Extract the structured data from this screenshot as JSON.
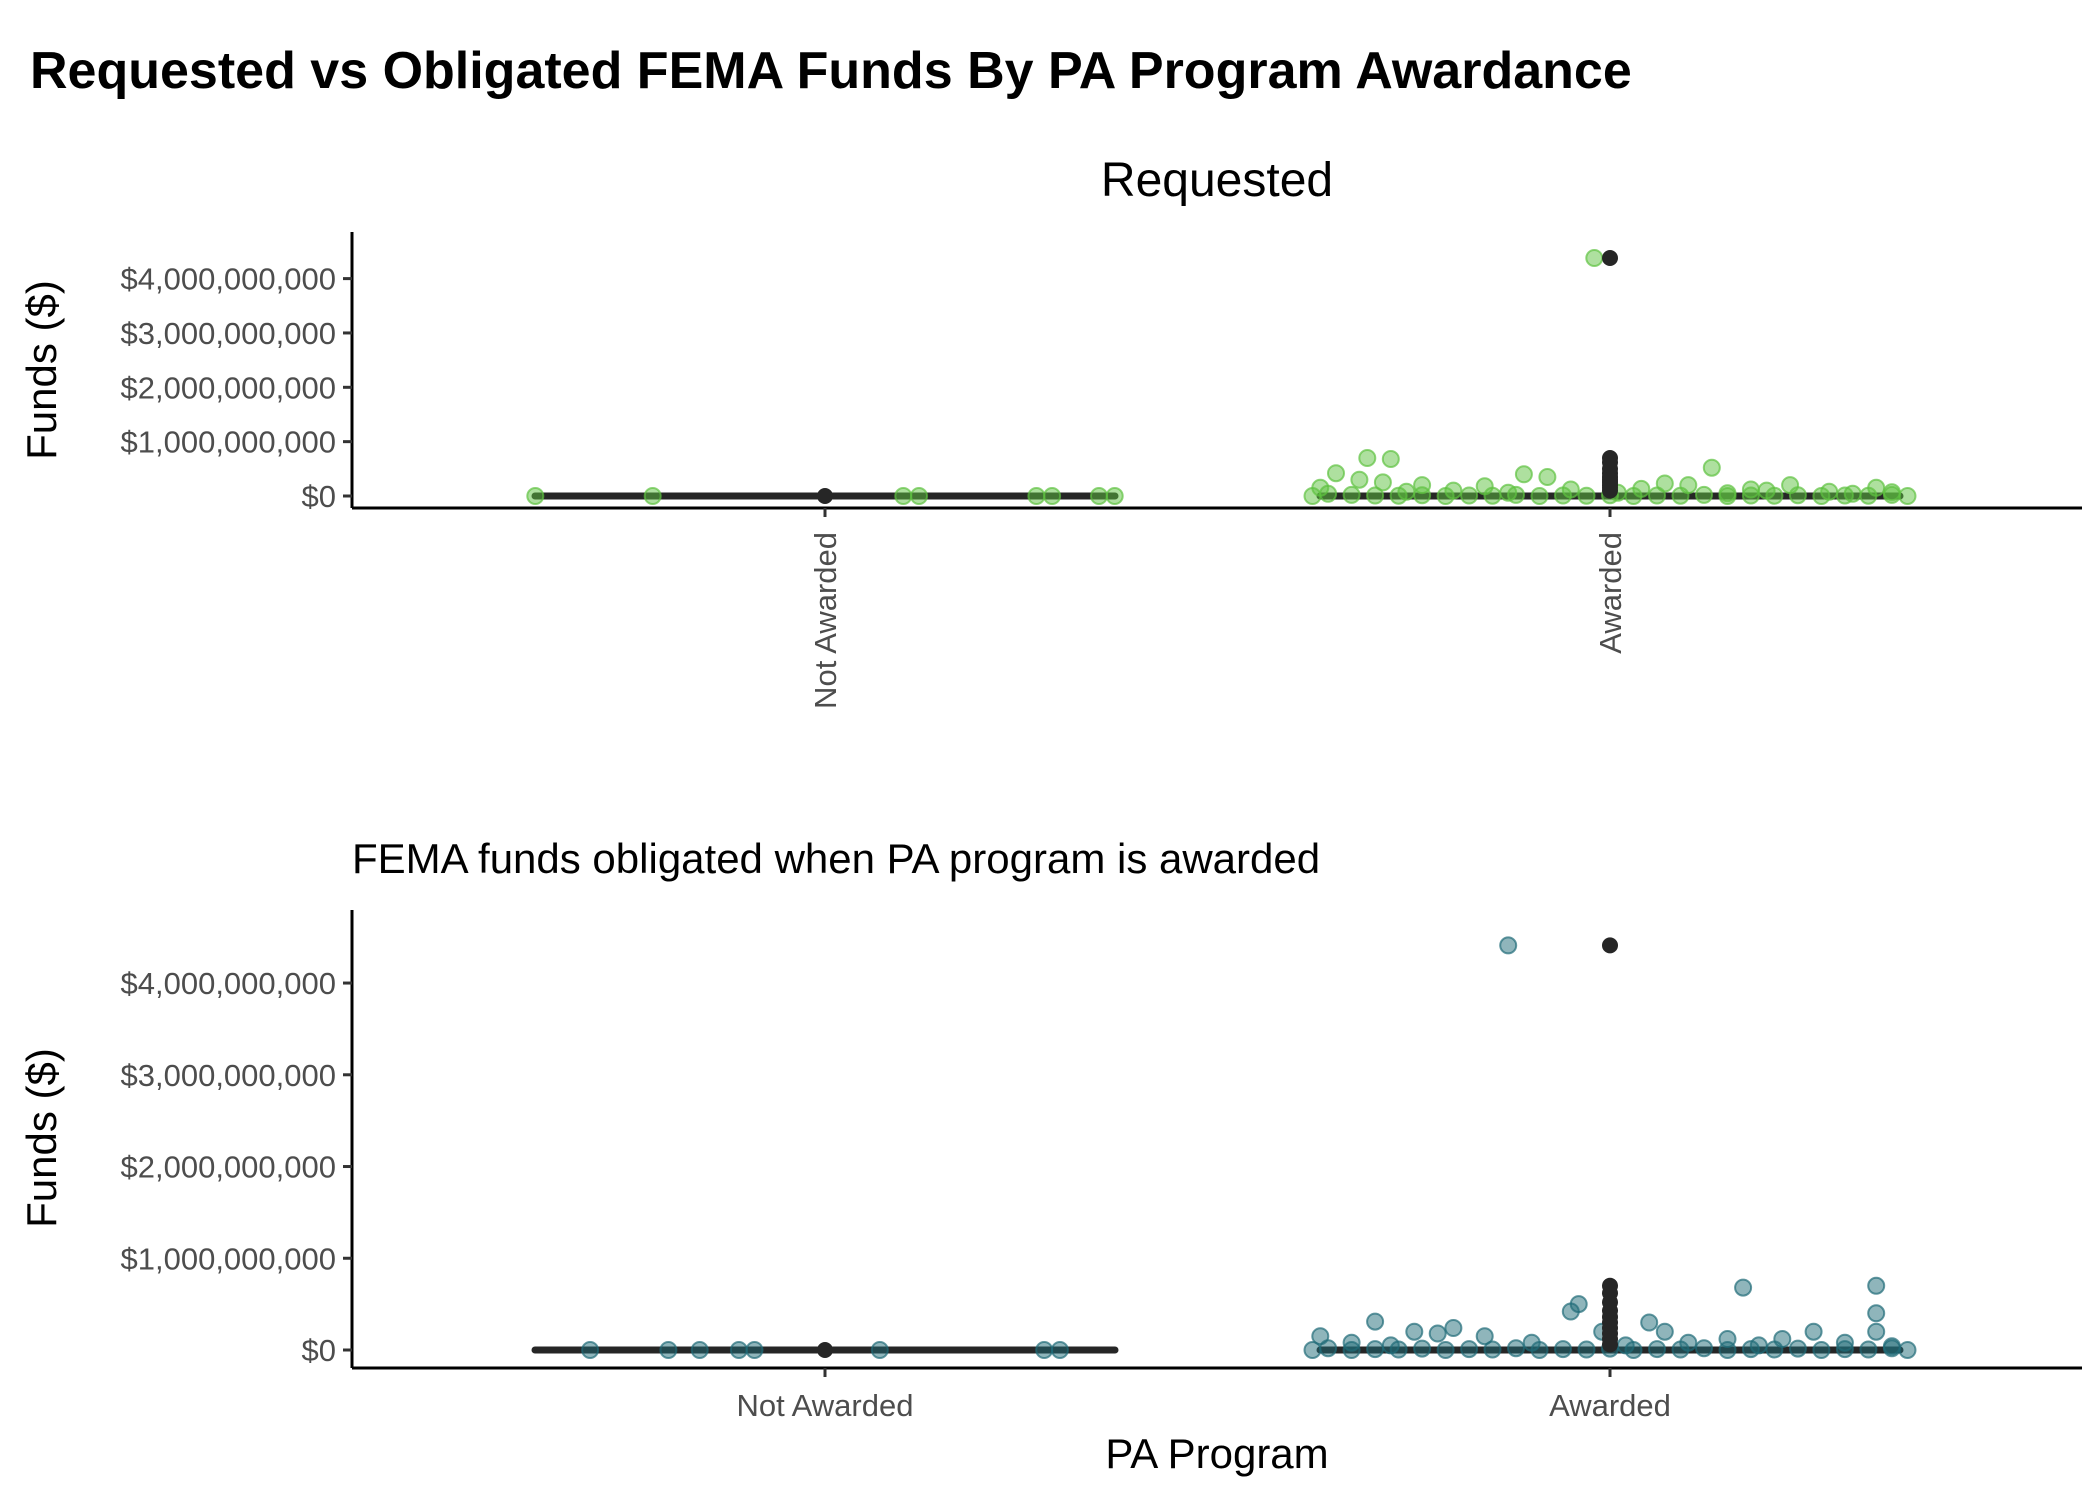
{
  "title": "Requested vs Obligated FEMA Funds By PA Program Awardance",
  "colors": {
    "requested_points": "#5ec240",
    "obligated_points": "#1f6b78",
    "box": "#262626"
  },
  "chart_data": [
    {
      "type": "box+jitter",
      "title": "Requested",
      "subtitle": "",
      "xlabel": "",
      "ylabel": "Funds ($)",
      "categories": [
        "Not Awarded",
        "Awarded"
      ],
      "x_tick_rotation": "vertical",
      "ylim": [
        -200000000,
        4600000000
      ],
      "yticks": [
        0,
        1000000000,
        2000000000,
        3000000000,
        4000000000
      ],
      "ytick_labels": [
        "$0",
        "$1,000,000,000",
        "$2,000,000,000",
        "$3,000,000,000",
        "$4,000,000,000"
      ],
      "point_color": "#5ec240",
      "boxes": [
        {
          "category": "Not Awarded",
          "median": 0,
          "q1": 0,
          "q3": 0
        },
        {
          "category": "Awarded",
          "median": 0,
          "q1": 0,
          "q3": 0
        }
      ],
      "outliers": [
        {
          "category": "Not Awarded",
          "values": [
            0
          ]
        },
        {
          "category": "Awarded",
          "values": [
            4380000000,
            700000000,
            620000000,
            500000000,
            420000000,
            350000000,
            300000000,
            250000000,
            200000000,
            150000000,
            100000000
          ]
        }
      ],
      "points": [
        {
          "category": "Not Awarded",
          "jitter": -0.37,
          "value": 0
        },
        {
          "category": "Not Awarded",
          "jitter": -0.22,
          "value": 0
        },
        {
          "category": "Not Awarded",
          "jitter": 0.1,
          "value": 0
        },
        {
          "category": "Not Awarded",
          "jitter": 0.12,
          "value": 0
        },
        {
          "category": "Not Awarded",
          "jitter": 0.27,
          "value": 0
        },
        {
          "category": "Not Awarded",
          "jitter": 0.29,
          "value": 0
        },
        {
          "category": "Not Awarded",
          "jitter": 0.35,
          "value": 0
        },
        {
          "category": "Not Awarded",
          "jitter": 0.37,
          "value": 0
        },
        {
          "category": "Awarded",
          "jitter": -0.02,
          "value": 4380000000
        },
        {
          "category": "Awarded",
          "jitter": -0.31,
          "value": 700000000
        },
        {
          "category": "Awarded",
          "jitter": -0.28,
          "value": 680000000
        },
        {
          "category": "Awarded",
          "jitter": 0.13,
          "value": 520000000
        },
        {
          "category": "Awarded",
          "jitter": -0.35,
          "value": 420000000
        },
        {
          "category": "Awarded",
          "jitter": -0.11,
          "value": 400000000
        },
        {
          "category": "Awarded",
          "jitter": -0.08,
          "value": 350000000
        },
        {
          "category": "Awarded",
          "jitter": -0.32,
          "value": 300000000
        },
        {
          "category": "Awarded",
          "jitter": -0.29,
          "value": 250000000
        },
        {
          "category": "Awarded",
          "jitter": -0.24,
          "value": 200000000
        },
        {
          "category": "Awarded",
          "jitter": 0.07,
          "value": 230000000
        },
        {
          "category": "Awarded",
          "jitter": 0.1,
          "value": 200000000
        },
        {
          "category": "Awarded",
          "jitter": -0.16,
          "value": 180000000
        },
        {
          "category": "Awarded",
          "jitter": 0.23,
          "value": 200000000
        },
        {
          "category": "Awarded",
          "jitter": 0.34,
          "value": 150000000
        },
        {
          "category": "Awarded",
          "jitter": -0.37,
          "value": 150000000
        },
        {
          "category": "Awarded",
          "jitter": -0.05,
          "value": 120000000
        },
        {
          "category": "Awarded",
          "jitter": 0.04,
          "value": 130000000
        },
        {
          "category": "Awarded",
          "jitter": 0.18,
          "value": 120000000
        },
        {
          "category": "Awarded",
          "jitter": 0.2,
          "value": 100000000
        },
        {
          "category": "Awarded",
          "jitter": -0.2,
          "value": 100000000
        },
        {
          "category": "Awarded",
          "jitter": 0.28,
          "value": 80000000
        },
        {
          "category": "Awarded",
          "jitter": 0.36,
          "value": 70000000
        },
        {
          "category": "Awarded",
          "jitter": -0.26,
          "value": 80000000
        },
        {
          "category": "Awarded",
          "jitter": -0.13,
          "value": 60000000
        },
        {
          "category": "Awarded",
          "jitter": 0.01,
          "value": 60000000
        },
        {
          "category": "Awarded",
          "jitter": 0.15,
          "value": 50000000
        },
        {
          "category": "Awarded",
          "jitter": 0.31,
          "value": 40000000
        },
        {
          "category": "Awarded",
          "jitter": -0.36,
          "value": 40000000
        },
        {
          "category": "Awarded",
          "jitter": -0.33,
          "value": 20000000
        },
        {
          "category": "Awarded",
          "jitter": -0.3,
          "value": 10000000
        },
        {
          "category": "Awarded",
          "jitter": -0.27,
          "value": 5000000
        },
        {
          "category": "Awarded",
          "jitter": -0.24,
          "value": 15000000
        },
        {
          "category": "Awarded",
          "jitter": -0.21,
          "value": 0
        },
        {
          "category": "Awarded",
          "jitter": -0.18,
          "value": 10000000
        },
        {
          "category": "Awarded",
          "jitter": -0.15,
          "value": 5000000
        },
        {
          "category": "Awarded",
          "jitter": -0.12,
          "value": 20000000
        },
        {
          "category": "Awarded",
          "jitter": -0.09,
          "value": 0
        },
        {
          "category": "Awarded",
          "jitter": -0.06,
          "value": 10000000
        },
        {
          "category": "Awarded",
          "jitter": -0.03,
          "value": 5000000
        },
        {
          "category": "Awarded",
          "jitter": 0.0,
          "value": 15000000
        },
        {
          "category": "Awarded",
          "jitter": 0.03,
          "value": 0
        },
        {
          "category": "Awarded",
          "jitter": 0.06,
          "value": 10000000
        },
        {
          "category": "Awarded",
          "jitter": 0.09,
          "value": 5000000
        },
        {
          "category": "Awarded",
          "jitter": 0.12,
          "value": 20000000
        },
        {
          "category": "Awarded",
          "jitter": 0.15,
          "value": 0
        },
        {
          "category": "Awarded",
          "jitter": 0.18,
          "value": 10000000
        },
        {
          "category": "Awarded",
          "jitter": 0.21,
          "value": 5000000
        },
        {
          "category": "Awarded",
          "jitter": 0.24,
          "value": 15000000
        },
        {
          "category": "Awarded",
          "jitter": 0.27,
          "value": 0
        },
        {
          "category": "Awarded",
          "jitter": 0.3,
          "value": 10000000
        },
        {
          "category": "Awarded",
          "jitter": 0.33,
          "value": 5000000
        },
        {
          "category": "Awarded",
          "jitter": 0.36,
          "value": 20000000
        },
        {
          "category": "Awarded",
          "jitter": 0.38,
          "value": 0
        },
        {
          "category": "Awarded",
          "jitter": -0.38,
          "value": 0
        }
      ]
    },
    {
      "type": "box+jitter",
      "title": "",
      "subtitle": "FEMA funds obligated when PA program is awarded",
      "xlabel": "PA Program",
      "ylabel": "Funds ($)",
      "categories": [
        "Not Awarded",
        "Awarded"
      ],
      "x_tick_rotation": "horizontal",
      "ylim": [
        -200000000,
        4600000000
      ],
      "yticks": [
        0,
        1000000000,
        2000000000,
        3000000000,
        4000000000
      ],
      "ytick_labels": [
        "$0",
        "$1,000,000,000",
        "$2,000,000,000",
        "$3,000,000,000",
        "$4,000,000,000"
      ],
      "point_color": "#1f6b78",
      "boxes": [
        {
          "category": "Not Awarded",
          "median": 0,
          "q1": 0,
          "q3": 0
        },
        {
          "category": "Awarded",
          "median": 0,
          "q1": 0,
          "q3": 0
        }
      ],
      "outliers": [
        {
          "category": "Not Awarded",
          "values": [
            0
          ]
        },
        {
          "category": "Awarded",
          "values": [
            4410000000,
            700000000,
            620000000,
            520000000,
            430000000,
            360000000,
            300000000,
            240000000,
            180000000,
            120000000,
            60000000
          ]
        }
      ],
      "points": [
        {
          "category": "Not Awarded",
          "jitter": -0.3,
          "value": 0
        },
        {
          "category": "Not Awarded",
          "jitter": -0.2,
          "value": 0
        },
        {
          "category": "Not Awarded",
          "jitter": -0.16,
          "value": 0
        },
        {
          "category": "Not Awarded",
          "jitter": -0.11,
          "value": 0
        },
        {
          "category": "Not Awarded",
          "jitter": -0.09,
          "value": 0
        },
        {
          "category": "Not Awarded",
          "jitter": 0.07,
          "value": 0
        },
        {
          "category": "Not Awarded",
          "jitter": 0.28,
          "value": 0
        },
        {
          "category": "Not Awarded",
          "jitter": 0.3,
          "value": 0
        },
        {
          "category": "Awarded",
          "jitter": -0.13,
          "value": 4410000000
        },
        {
          "category": "Awarded",
          "jitter": 0.17,
          "value": 680000000
        },
        {
          "category": "Awarded",
          "jitter": 0.34,
          "value": 700000000
        },
        {
          "category": "Awarded",
          "jitter": 0.34,
          "value": 400000000
        },
        {
          "category": "Awarded",
          "jitter": -0.04,
          "value": 500000000
        },
        {
          "category": "Awarded",
          "jitter": -0.05,
          "value": 420000000
        },
        {
          "category": "Awarded",
          "jitter": -0.3,
          "value": 310000000
        },
        {
          "category": "Awarded",
          "jitter": 0.05,
          "value": 300000000
        },
        {
          "category": "Awarded",
          "jitter": -0.2,
          "value": 240000000
        },
        {
          "category": "Awarded",
          "jitter": -0.25,
          "value": 200000000
        },
        {
          "category": "Awarded",
          "jitter": -0.22,
          "value": 180000000
        },
        {
          "category": "Awarded",
          "jitter": 0.07,
          "value": 200000000
        },
        {
          "category": "Awarded",
          "jitter": 0.26,
          "value": 200000000
        },
        {
          "category": "Awarded",
          "jitter": 0.34,
          "value": 200000000
        },
        {
          "category": "Awarded",
          "jitter": -0.37,
          "value": 150000000
        },
        {
          "category": "Awarded",
          "jitter": -0.16,
          "value": 150000000
        },
        {
          "category": "Awarded",
          "jitter": -0.01,
          "value": 200000000
        },
        {
          "category": "Awarded",
          "jitter": 0.15,
          "value": 120000000
        },
        {
          "category": "Awarded",
          "jitter": 0.22,
          "value": 120000000
        },
        {
          "category": "Awarded",
          "jitter": -0.33,
          "value": 80000000
        },
        {
          "category": "Awarded",
          "jitter": -0.1,
          "value": 80000000
        },
        {
          "category": "Awarded",
          "jitter": 0.1,
          "value": 80000000
        },
        {
          "category": "Awarded",
          "jitter": 0.3,
          "value": 80000000
        },
        {
          "category": "Awarded",
          "jitter": -0.28,
          "value": 50000000
        },
        {
          "category": "Awarded",
          "jitter": 0.02,
          "value": 50000000
        },
        {
          "category": "Awarded",
          "jitter": 0.19,
          "value": 50000000
        },
        {
          "category": "Awarded",
          "jitter": 0.36,
          "value": 40000000
        },
        {
          "category": "Awarded",
          "jitter": -0.36,
          "value": 20000000
        },
        {
          "category": "Awarded",
          "jitter": -0.33,
          "value": 0
        },
        {
          "category": "Awarded",
          "jitter": -0.3,
          "value": 10000000
        },
        {
          "category": "Awarded",
          "jitter": -0.27,
          "value": 5000000
        },
        {
          "category": "Awarded",
          "jitter": -0.24,
          "value": 15000000
        },
        {
          "category": "Awarded",
          "jitter": -0.21,
          "value": 0
        },
        {
          "category": "Awarded",
          "jitter": -0.18,
          "value": 10000000
        },
        {
          "category": "Awarded",
          "jitter": -0.15,
          "value": 5000000
        },
        {
          "category": "Awarded",
          "jitter": -0.12,
          "value": 20000000
        },
        {
          "category": "Awarded",
          "jitter": -0.09,
          "value": 0
        },
        {
          "category": "Awarded",
          "jitter": -0.06,
          "value": 10000000
        },
        {
          "category": "Awarded",
          "jitter": -0.03,
          "value": 5000000
        },
        {
          "category": "Awarded",
          "jitter": 0.0,
          "value": 15000000
        },
        {
          "category": "Awarded",
          "jitter": 0.03,
          "value": 0
        },
        {
          "category": "Awarded",
          "jitter": 0.06,
          "value": 10000000
        },
        {
          "category": "Awarded",
          "jitter": 0.09,
          "value": 5000000
        },
        {
          "category": "Awarded",
          "jitter": 0.12,
          "value": 20000000
        },
        {
          "category": "Awarded",
          "jitter": 0.15,
          "value": 0
        },
        {
          "category": "Awarded",
          "jitter": 0.18,
          "value": 10000000
        },
        {
          "category": "Awarded",
          "jitter": 0.21,
          "value": 5000000
        },
        {
          "category": "Awarded",
          "jitter": 0.24,
          "value": 15000000
        },
        {
          "category": "Awarded",
          "jitter": 0.27,
          "value": 0
        },
        {
          "category": "Awarded",
          "jitter": 0.3,
          "value": 10000000
        },
        {
          "category": "Awarded",
          "jitter": 0.33,
          "value": 5000000
        },
        {
          "category": "Awarded",
          "jitter": 0.36,
          "value": 20000000
        },
        {
          "category": "Awarded",
          "jitter": 0.38,
          "value": 0
        },
        {
          "category": "Awarded",
          "jitter": -0.38,
          "value": 0
        }
      ]
    }
  ]
}
